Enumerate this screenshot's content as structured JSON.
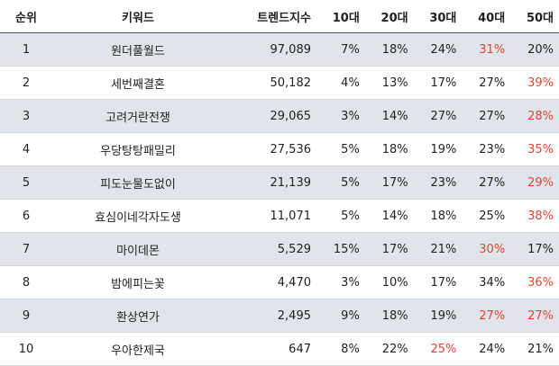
{
  "colors": {
    "highlight": "#e8432f",
    "stripe": "#dfe5ea"
  },
  "headers": [
    "순위",
    "키워드",
    "트렌드지수",
    "10대",
    "20대",
    "30대",
    "40대",
    "50대"
  ],
  "rows": [
    {
      "rank": "1",
      "keyword": "원더풀월드",
      "index": "97,089",
      "ages": [
        "7%",
        "18%",
        "24%",
        "31%",
        "20%"
      ],
      "highlight": [
        3
      ]
    },
    {
      "rank": "2",
      "keyword": "세번째결혼",
      "index": "50,182",
      "ages": [
        "4%",
        "13%",
        "17%",
        "27%",
        "39%"
      ],
      "highlight": [
        4
      ]
    },
    {
      "rank": "3",
      "keyword": "고려거란전쟁",
      "index": "29,065",
      "ages": [
        "3%",
        "14%",
        "27%",
        "27%",
        "28%"
      ],
      "highlight": [
        4
      ]
    },
    {
      "rank": "4",
      "keyword": "우당탕탕패밀리",
      "index": "27,536",
      "ages": [
        "5%",
        "18%",
        "19%",
        "23%",
        "35%"
      ],
      "highlight": [
        4
      ]
    },
    {
      "rank": "5",
      "keyword": "피도눈물도없이",
      "index": "21,139",
      "ages": [
        "5%",
        "17%",
        "23%",
        "27%",
        "29%"
      ],
      "highlight": [
        4
      ]
    },
    {
      "rank": "6",
      "keyword": "효심이네각자도생",
      "index": "11,071",
      "ages": [
        "5%",
        "14%",
        "18%",
        "25%",
        "38%"
      ],
      "highlight": [
        4
      ]
    },
    {
      "rank": "7",
      "keyword": "마이데몬",
      "index": "5,529",
      "ages": [
        "15%",
        "17%",
        "21%",
        "30%",
        "17%"
      ],
      "highlight": [
        3
      ]
    },
    {
      "rank": "8",
      "keyword": "밤에피는꽃",
      "index": "4,470",
      "ages": [
        "3%",
        "10%",
        "17%",
        "34%",
        "36%"
      ],
      "highlight": [
        4
      ]
    },
    {
      "rank": "9",
      "keyword": "환상연가",
      "index": "2,495",
      "ages": [
        "9%",
        "18%",
        "19%",
        "27%",
        "27%"
      ],
      "highlight": [
        3,
        4
      ]
    },
    {
      "rank": "10",
      "keyword": "우아한제국",
      "index": "647",
      "ages": [
        "8%",
        "22%",
        "25%",
        "24%",
        "21%"
      ],
      "highlight": [
        2
      ]
    }
  ]
}
